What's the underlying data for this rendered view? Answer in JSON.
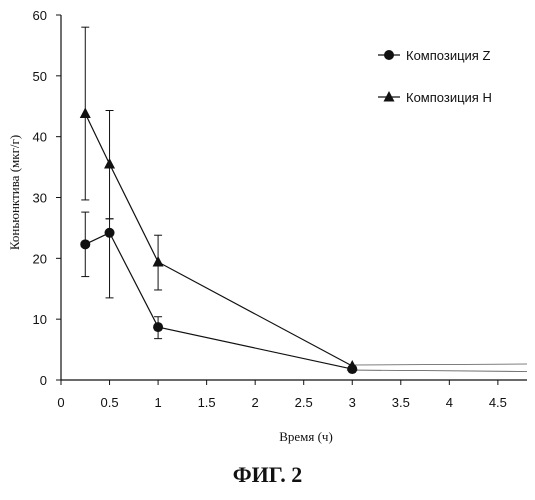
{
  "caption": "ФИГ. 2",
  "chart_data": {
    "type": "line",
    "xlabel": "Время (ч)",
    "ylabel": "Коньюнктива (мкг/г)",
    "xlim": [
      0,
      4.8
    ],
    "ylim": [
      0,
      60
    ],
    "x_ticks": [
      0,
      0.5,
      1,
      1.5,
      2,
      2.5,
      3,
      3.5,
      4,
      4.5
    ],
    "x_tick_labels": [
      "0",
      "0.5",
      "1",
      "1.5",
      "2",
      "2.5",
      "3",
      "3.5",
      "4",
      "4.5"
    ],
    "y_ticks": [
      0,
      10,
      20,
      30,
      40,
      50,
      60
    ],
    "y_tick_labels": [
      "0",
      "10",
      "20",
      "30",
      "40",
      "50",
      "60"
    ],
    "grid": false,
    "legend_position": "top-right",
    "series": [
      {
        "name": "Композиция Z",
        "marker": "circle",
        "x": [
          0.25,
          0.5,
          1,
          3
        ],
        "y": [
          22.3,
          24.2,
          8.7,
          1.8
        ],
        "err_low": [
          17.0,
          13.5,
          6.8,
          null
        ],
        "err_high": [
          27.6,
          26.5,
          10.4,
          null
        ]
      },
      {
        "name": "Композиция H",
        "marker": "triangle",
        "x": [
          0.25,
          0.5,
          1,
          3
        ],
        "y": [
          43.8,
          35.5,
          19.4,
          2.3
        ],
        "err_low": [
          29.6,
          26.5,
          14.8,
          null
        ],
        "err_high": [
          58.0,
          44.3,
          23.8,
          null
        ]
      }
    ]
  }
}
